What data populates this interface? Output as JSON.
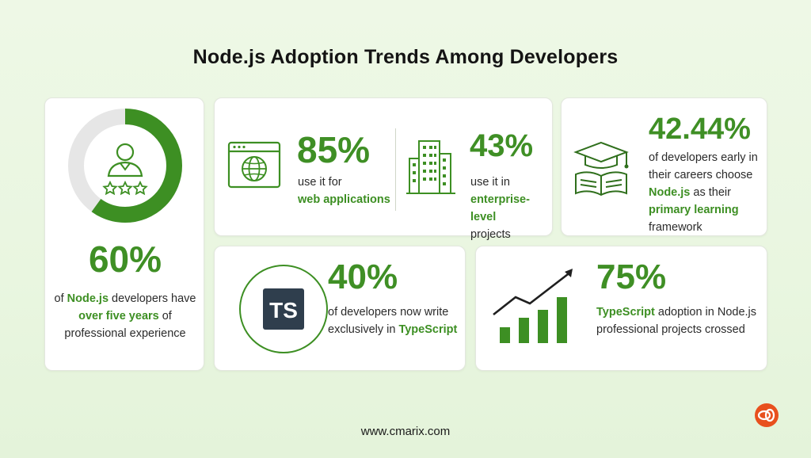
{
  "title": "Node.js Adoption Trends Among Developers",
  "colors": {
    "accent": "#3d8f23",
    "ring_track": "#e6e6e6",
    "ts_box": "#2f3e4d",
    "logo": "#e8501e"
  },
  "cards": {
    "experience": {
      "icon": "developer-stars-icon",
      "ring_fraction": 0.6,
      "stat": "60%",
      "text_1": "of ",
      "text_hl_1": "Node.js",
      "text_2": " developers have ",
      "text_hl_2": "over five years",
      "text_3": " of professional experience"
    },
    "web": {
      "icon": "globe-browser-icon",
      "stat": "85%",
      "text_1": "use it for",
      "text_hl": "web applications"
    },
    "enterprise": {
      "icon": "buildings-icon",
      "stat": "43%",
      "text_1": "use it in",
      "text_hl": "enterprise-level",
      "text_2": "projects"
    },
    "learning": {
      "icon": "graduation-cap-book-icon",
      "stat": "42.44%",
      "text_1": "of developers early in their careers choose ",
      "text_hl_1": "Node.js",
      "text_2": " as their ",
      "text_hl_2": "primary learning",
      "text_3": " framework"
    },
    "typescript": {
      "icon_text": "TS",
      "stat": "40%",
      "text_1": "of developers now write exclusively in ",
      "text_hl": "TypeScript"
    },
    "adoption": {
      "icon": "growth-bar-chart-icon",
      "stat": "75%",
      "text_hl": "TypeScript",
      "text_1": " adoption in Node.js professional projects crossed"
    }
  },
  "footer": "www.cmarix.com",
  "logo": "cmarix-logo"
}
